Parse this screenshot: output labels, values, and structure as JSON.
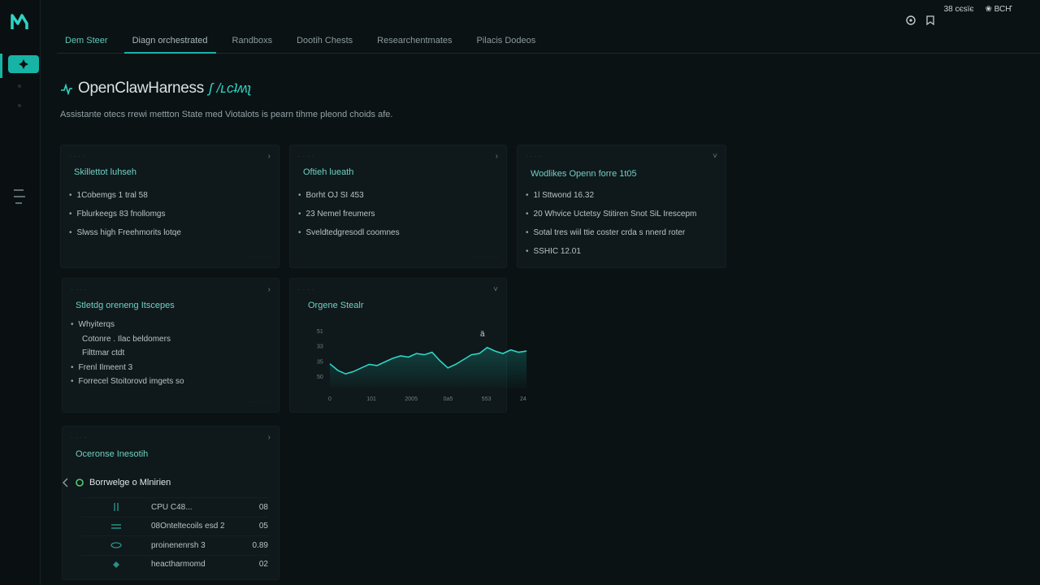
{
  "app": {
    "title": "OpenClawHarness",
    "title_suffix": "ʃ /ʟсʇʍʅ"
  },
  "topbar": {
    "status_a": "38 сєѕїє",
    "status_b": "❀ ВСҤ"
  },
  "tabs": [
    {
      "label": "Dem Steer"
    },
    {
      "label": "Diagn orchestrated"
    },
    {
      "label": "Randboxs"
    },
    {
      "label": "Dootih Chests"
    },
    {
      "label": "Researchentmates"
    },
    {
      "label": "Pilacis Dodeos"
    }
  ],
  "page": {
    "subtitle": "Assistante otecs rrewi mettton State med Viotalots is pearn tihme pleond choids afe."
  },
  "cards": {
    "c1": {
      "title": "Skillettot luhseh",
      "items": [
        "1Cobemgs 1 tral 58",
        "Fblurkeegs 83 fnollomgs",
        "Slwss high Freehmorits lotqe"
      ]
    },
    "c2": {
      "title": "Oftieh lueath",
      "items": [
        "Borht OJ SI 453",
        "23 Nemel freumers",
        "Sveldtedgresodl coomnes"
      ]
    },
    "c3": {
      "title": "Wodlikes Openn forre 1t05",
      "items": [
        "1l Sttwond 16.32",
        "20 Whvice Uctetsy Stitiren Snot SiL Irescepm",
        "Sotal tres wiil ttie coster crda s nnerd roter",
        "SSHIC 12.01"
      ]
    },
    "c4": {
      "title": "Stletdg oreneng Itscepes",
      "items": [
        "Whyiterqs",
        "Cotonre . Ilac beldomers",
        "Filttmar ctdt",
        "Frenl Ilmeent 3",
        "Forrecel Stoitorovd imgets so"
      ]
    },
    "c5": {
      "title": "Orgene Stealr"
    },
    "c6": {
      "title": "Oceronse Inesotih"
    }
  },
  "resources": {
    "title": "Borrwelge o Mlnirien",
    "rows": [
      {
        "name": "CPU C48...",
        "value": "08"
      },
      {
        "name": "08Onteltecoils esd 2",
        "value": "05"
      },
      {
        "name": "proinenenrsh 3",
        "value": "0.89"
      },
      {
        "name": "heactharmomd",
        "value": "02"
      }
    ]
  },
  "colors": {
    "accent": "#17b4a6",
    "background": "#0b1214",
    "card": "#0f181a"
  },
  "icons": [
    "logo-icon",
    "active-nav-icon",
    "sync-icon",
    "bookmark-icon",
    "pulse-icon",
    "chevron-left-icon",
    "leaf-icon"
  ],
  "chart_data": {
    "type": "area",
    "title": "Orgene Stealr",
    "xlabel": "",
    "ylabel": "",
    "y_ticks": [
      "51",
      "33",
      "35",
      "50"
    ],
    "x_ticks": [
      "0",
      "101",
      "2005",
      "0a5",
      "553",
      "24"
    ],
    "series": [
      {
        "x": [
          0,
          4,
          8,
          12,
          16,
          20,
          24,
          28,
          32,
          36,
          40,
          44,
          48,
          52,
          56,
          60,
          64,
          68,
          72,
          76,
          80,
          84,
          88,
          92,
          96,
          100
        ],
        "values": [
          41,
          30,
          24,
          28,
          34,
          40,
          38,
          44,
          50,
          54,
          52,
          58,
          56,
          60,
          46,
          34,
          40,
          48,
          56,
          58,
          68,
          62,
          58,
          64,
          60,
          62
        ]
      }
    ],
    "ylim": [
      0,
      100
    ],
    "grid": false,
    "annotation": "ä"
  }
}
